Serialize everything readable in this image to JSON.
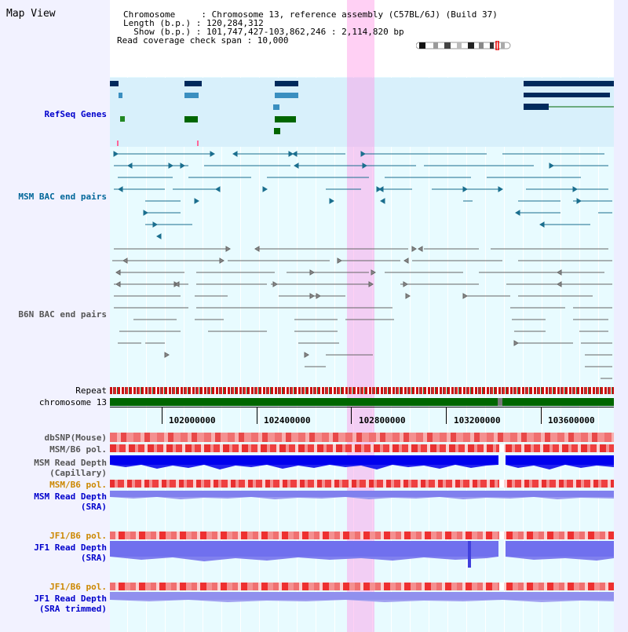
{
  "title": "Map View",
  "info": {
    "line1": "Chromosome     : Chromosome 13, reference assembly (C57BL/6J) (Build 37)",
    "line2": "Length (b.p.) : 120,284,312",
    "line3": "  Show (b.p.) : 101,747,427-103,862,246 : 2,114,820 bp",
    "line4": "Read coverage check span : 10,000"
  },
  "tracks": {
    "refseq": "RefSeq Genes",
    "msm_bac": "MSM BAC end pairs",
    "b6n_bac": "B6N BAC end pairs",
    "repeat": "Repeat",
    "chromosome": "chromosome 13",
    "dbsnp": "dbSNP(Mouse)",
    "msm_b6_pol": "MSM/B6 pol.",
    "msm_read_cap_1": "MSM Read Depth",
    "msm_read_cap_2": "(Capillary)",
    "msm_b6_pol_2": "MSM/B6 pol.",
    "msm_read_sra_1": "MSM Read Depth",
    "msm_read_sra_2": "(SRA)",
    "jf1_b6_pol": "JF1/B6 pol.",
    "jf1_read_sra_1": "JF1 Read Depth",
    "jf1_read_sra_2": "(SRA)",
    "jf1_b6_pol_2": "JF1/B6 pol.",
    "jf1_read_trim_1": "JF1 Read Depth",
    "jf1_read_trim_2": "(SRA trimmed)"
  },
  "axis_ticks": [
    "102000000",
    "102400000",
    "102800000",
    "103200000",
    "103600000"
  ],
  "colors": {
    "highlight": "#ff96e6",
    "refseq_dark": "#002a5c",
    "refseq_light": "#3a8fc0",
    "refseq_green": "#006600",
    "msm_bac": "#1a6e8e",
    "b6n_bac": "#666666",
    "chromosome": "#006600",
    "read_depth": "#0000ee",
    "pol_red": "#ee2222"
  }
}
